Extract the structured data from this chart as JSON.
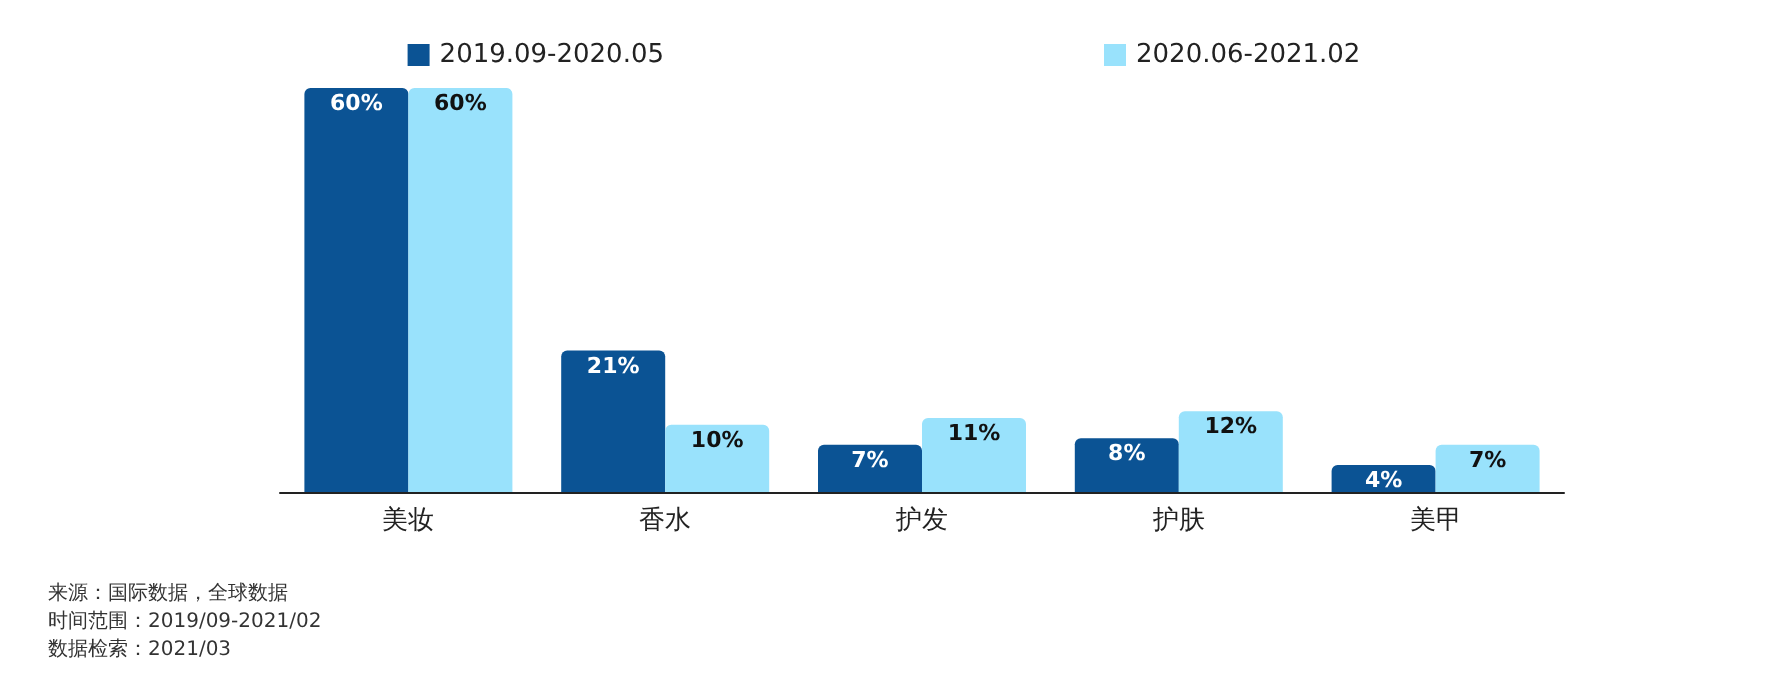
{
  "chart_data": {
    "type": "bar",
    "categories": [
      "美妆",
      "香水",
      "护发",
      "护肤",
      "美甲"
    ],
    "series": [
      {
        "name": "2019.09-2020.05",
        "color": "#0b5394",
        "values": [
          60,
          21,
          7,
          8,
          4
        ],
        "value_labels": [
          "60%",
          "21%",
          "7%",
          "8%",
          "4%"
        ]
      },
      {
        "name": "2020.06-2021.02",
        "color": "#99e2fc",
        "values": [
          60,
          10,
          11,
          12,
          7
        ],
        "value_labels": [
          "60%",
          "10%",
          "11%",
          "12%",
          "7%"
        ]
      }
    ],
    "legend": "top",
    "grid": false,
    "annotations": [
      "来源：国际数据，全球数据",
      "时间范围：2019/09-2021/02",
      "数据检索：2021/03"
    ]
  }
}
